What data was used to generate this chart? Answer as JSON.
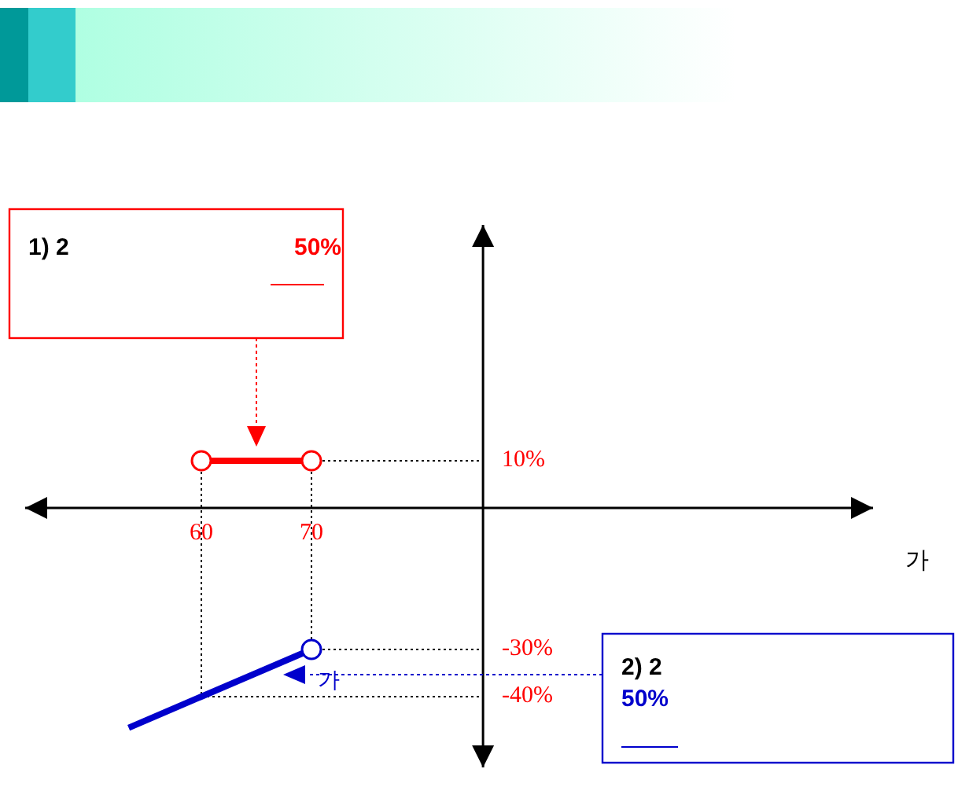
{
  "chart_data": {
    "type": "line",
    "xlabel": "가",
    "series": [
      {
        "color": "#ff0000",
        "x": [
          60,
          70
        ],
        "values": [
          10,
          10
        ],
        "marker": "circle"
      },
      {
        "name": "가",
        "color": "#0000cc",
        "x": [
          53.4,
          60,
          70
        ],
        "values": [
          -46.6,
          -40,
          -30
        ]
      },
      {
        "type": "scatter",
        "color": "#0000cc",
        "x": [
          70
        ],
        "values": [
          -30
        ],
        "marker": "circle"
      }
    ],
    "xlim": [
      44,
      121
    ],
    "ylim": [
      -55,
      60
    ],
    "xticks": [
      60,
      70
    ],
    "yticks": [
      {
        "value": 10,
        "label": "10%"
      },
      {
        "value": -30,
        "label": "-30%"
      },
      {
        "value": -40,
        "label": "-40%"
      }
    ],
    "ref_lines": [
      {
        "axis": "x",
        "value": 60,
        "line_style": "dotted"
      },
      {
        "axis": "x",
        "value": 70,
        "line_style": "dotted"
      },
      {
        "axis": "y",
        "value": 10,
        "line_style": "dotted"
      },
      {
        "axis": "y",
        "value": -30,
        "line_style": "dotted"
      },
      {
        "axis": "y",
        "value": -40,
        "line_style": "dotted"
      }
    ],
    "annotations": [
      "1) 2",
      "50%",
      "2) 2",
      "50%"
    ]
  }
}
